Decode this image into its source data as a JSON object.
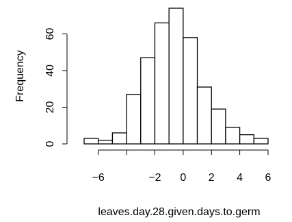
{
  "chart_data": {
    "type": "histogram",
    "title": "",
    "xlabel": "leaves.day.28.given.days.to.germ",
    "ylabel": "Frequency",
    "bin_edges": [
      -7,
      -6,
      -5,
      -4,
      -3,
      -2,
      -1,
      0,
      1,
      2,
      3,
      4,
      5,
      6
    ],
    "counts": [
      3,
      2,
      6,
      27,
      47,
      66,
      74,
      58,
      31,
      19,
      9,
      5,
      3
    ],
    "xlim": [
      -7,
      6
    ],
    "ylim": [
      0,
      74
    ],
    "x_ticks": [
      -6,
      -4,
      -2,
      0,
      2,
      4,
      6
    ],
    "x_tick_labels": [
      "−6",
      "",
      "−2",
      "0",
      "2",
      "4",
      "6"
    ],
    "y_ticks": [
      0,
      20,
      40,
      60
    ],
    "y_tick_labels": [
      "0",
      "20",
      "40",
      "60"
    ],
    "grid": false,
    "bar_fill": "#ffffff",
    "bar_stroke": "#000000"
  }
}
